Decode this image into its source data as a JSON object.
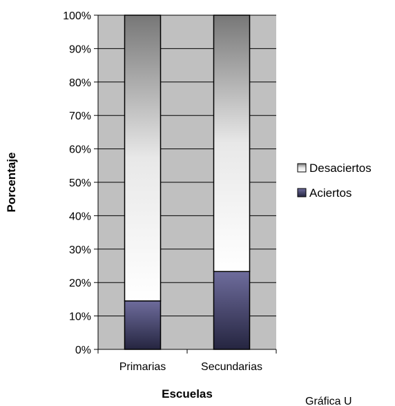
{
  "chart_data": {
    "type": "bar",
    "stacked": true,
    "percent": true,
    "categories": [
      "Primarias",
      "Secundarias"
    ],
    "series": [
      {
        "name": "Aciertos",
        "values": [
          14.5,
          23.3
        ],
        "color": "#5a5888"
      },
      {
        "name": "Desaciertos",
        "values": [
          85.5,
          76.7
        ],
        "color": "#808080"
      }
    ],
    "xlabel": "Escuelas",
    "ylabel": "Porcentaje",
    "ylim": [
      0,
      100
    ],
    "yticks": [
      "0%",
      "10%",
      "20%",
      "30%",
      "40%",
      "50%",
      "60%",
      "70%",
      "80%",
      "90%",
      "100%"
    ],
    "grid": true,
    "plot_background": "#c0c0c0",
    "legend": {
      "placement": "right",
      "entries": [
        "Desaciertos",
        "Aciertos"
      ]
    }
  },
  "caption": "Gráfica U"
}
